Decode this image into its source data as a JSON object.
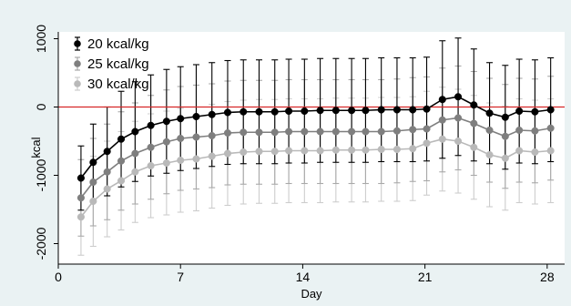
{
  "chart_data": {
    "type": "line",
    "xlabel": "Day",
    "ylabel": "kcal",
    "xlim": [
      0,
      29
    ],
    "ylim": [
      -2300,
      1100
    ],
    "x_ticks": [
      0,
      7,
      14,
      21,
      28
    ],
    "x_tick_labels": [
      "0",
      "7",
      "14",
      "21",
      "28"
    ],
    "y_ticks": [
      1000,
      0,
      -1000,
      -2000
    ],
    "y_tick_labels": [
      "1000",
      "0",
      "-1000",
      "-2000"
    ],
    "reference_line": {
      "y": 0,
      "color": "#d62728"
    },
    "grid": false,
    "legend_position": "top-left",
    "x": [
      1.3,
      2,
      2.8,
      3.6,
      4.4,
      5.3,
      6.2,
      7,
      7.9,
      8.8,
      9.7,
      10.6,
      11.5,
      12.4,
      13.2,
      14.1,
      15,
      15.9,
      16.8,
      17.6,
      18.5,
      19.4,
      20.3,
      21.1,
      22,
      22.9,
      23.8,
      24.7,
      25.6,
      26.4,
      27.3,
      28.2
    ],
    "series": [
      {
        "name": "20 kcal/kg",
        "color": "#000000",
        "marker_color": "#000000",
        "errorbar_color": "#000000",
        "values": [
          -1040,
          -810,
          -650,
          -470,
          -360,
          -270,
          -210,
          -170,
          -140,
          -110,
          -80,
          -70,
          -70,
          -70,
          -60,
          -60,
          -50,
          -50,
          -50,
          -50,
          -40,
          -40,
          -40,
          -30,
          110,
          150,
          30,
          -90,
          -150,
          -60,
          -70,
          -40
        ],
        "err": [
          470,
          560,
          650,
          700,
          730,
          740,
          760,
          760,
          760,
          760,
          760,
          760,
          760,
          760,
          760,
          760,
          760,
          760,
          760,
          760,
          760,
          760,
          760,
          760,
          860,
          860,
          820,
          740,
          760,
          760,
          760,
          760
        ]
      },
      {
        "name": "25 kcal/kg",
        "color": "#7f7f7f",
        "marker_color": "#7f7f7f",
        "errorbar_color": "#a9a9a9",
        "values": [
          -1330,
          -1100,
          -950,
          -790,
          -680,
          -590,
          -510,
          -460,
          -440,
          -420,
          -380,
          -370,
          -370,
          -370,
          -360,
          -360,
          -360,
          -360,
          -360,
          -360,
          -360,
          -350,
          -330,
          -320,
          -190,
          -160,
          -240,
          -340,
          -430,
          -340,
          -350,
          -310
        ],
        "err": [
          560,
          640,
          700,
          720,
          740,
          760,
          760,
          760,
          760,
          760,
          760,
          760,
          760,
          760,
          760,
          760,
          760,
          760,
          760,
          760,
          760,
          760,
          760,
          760,
          760,
          760,
          760,
          760,
          760,
          760,
          760,
          760
        ]
      },
      {
        "name": "30 kcal/kg",
        "color": "#b9b9b9",
        "marker_color": "#b9b9b9",
        "errorbar_color": "#cdcdcd",
        "values": [
          -1610,
          -1380,
          -1200,
          -1080,
          -950,
          -860,
          -820,
          -780,
          -760,
          -720,
          -680,
          -660,
          -650,
          -650,
          -640,
          -640,
          -640,
          -630,
          -630,
          -630,
          -620,
          -620,
          -610,
          -530,
          -470,
          -500,
          -590,
          -700,
          -750,
          -640,
          -660,
          -640
        ],
        "err": [
          560,
          660,
          700,
          720,
          740,
          760,
          760,
          760,
          760,
          760,
          760,
          760,
          760,
          760,
          760,
          760,
          760,
          760,
          760,
          760,
          760,
          760,
          760,
          760,
          760,
          760,
          760,
          760,
          760,
          760,
          760,
          760
        ]
      }
    ]
  }
}
